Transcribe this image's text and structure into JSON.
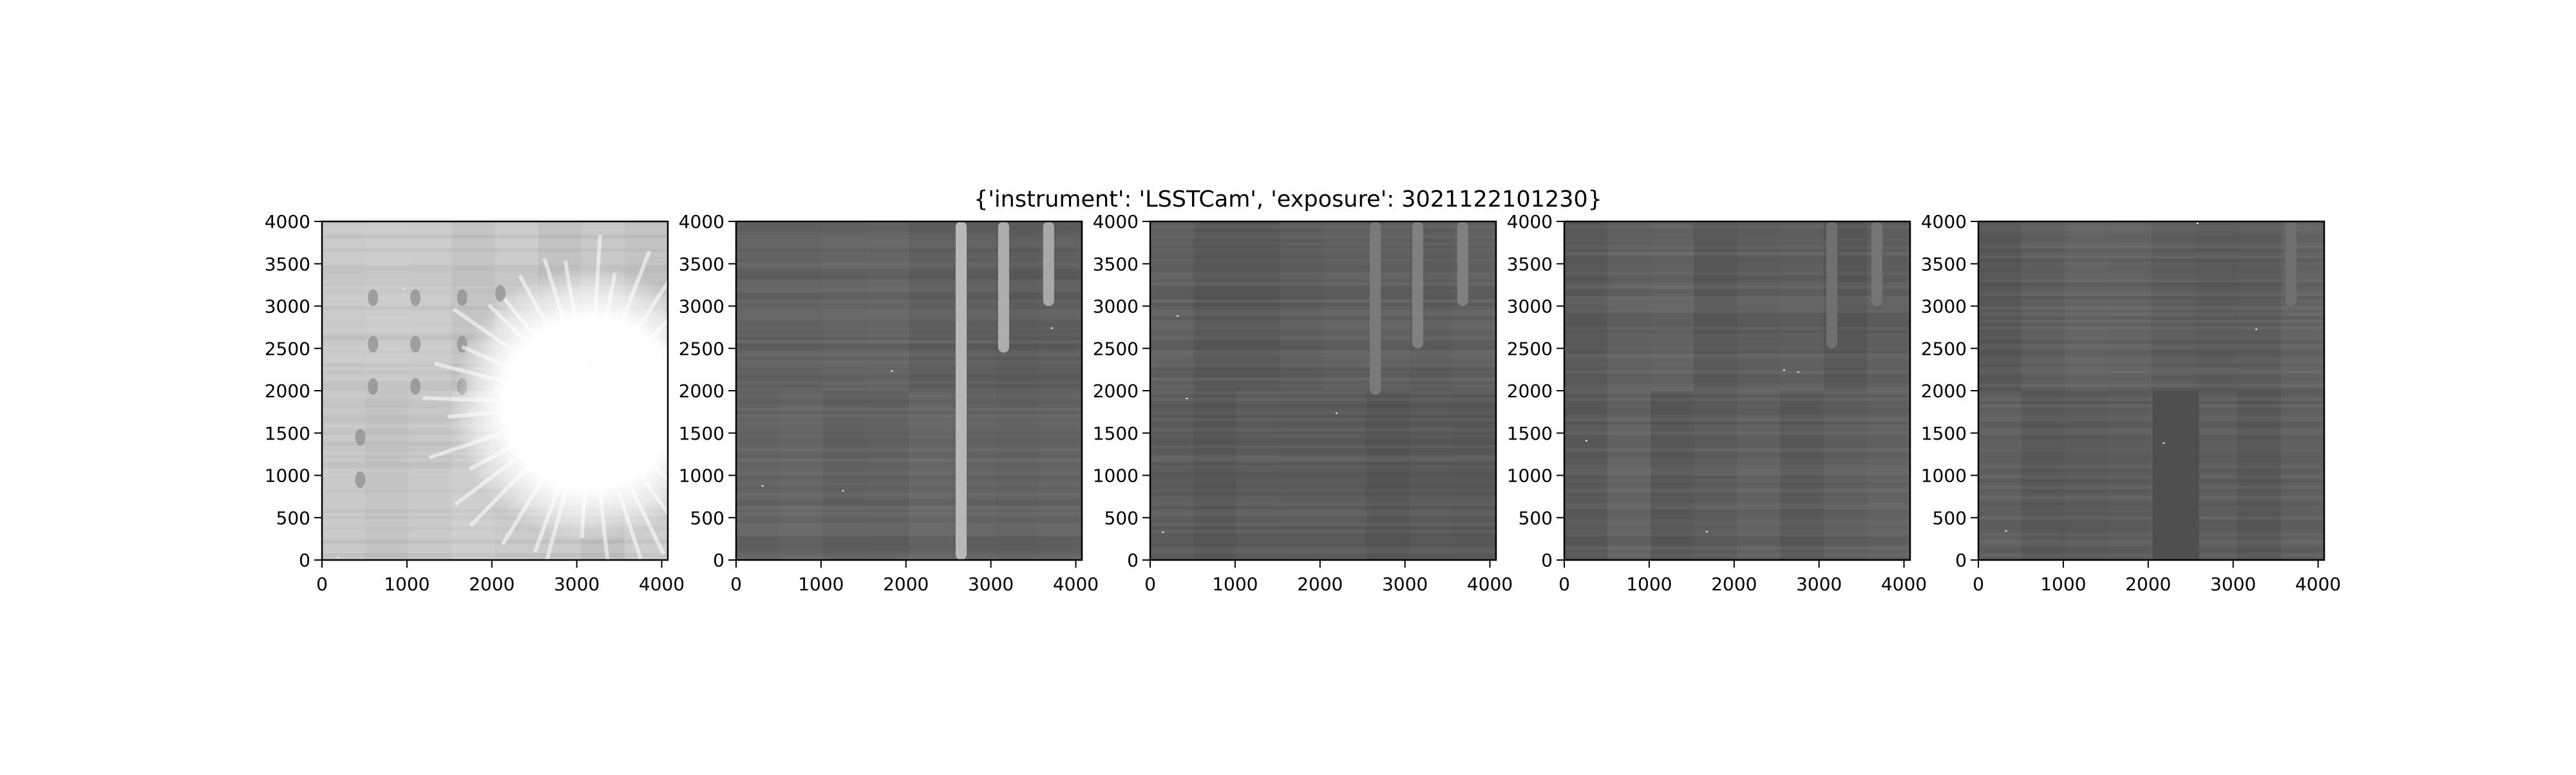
{
  "figure": {
    "suptitle": "{'instrument': 'LSSTCam', 'exposure': 3021122101230}"
  },
  "chart_data": [
    {
      "type": "heatmap",
      "panel": 1,
      "title": "",
      "xlabel": "",
      "ylabel": "",
      "xlim": [
        0,
        4072
      ],
      "ylim": [
        0,
        4000
      ],
      "x_ticks": [
        0,
        1000,
        2000,
        3000,
        4000
      ],
      "y_ticks": [
        0,
        500,
        1000,
        1500,
        2000,
        2500,
        3000,
        3500,
        4000
      ],
      "colormap": "gray",
      "description_values": {
        "amp_columns": 8,
        "amp_rows": 2,
        "base_gray": 0.78,
        "saturated_region_center": [
          3150,
          1850
        ],
        "saturated_region_radius": 1050,
        "dark_spots": [
          [
            600,
            3100
          ],
          [
            1100,
            3100
          ],
          [
            1650,
            3100
          ],
          [
            2100,
            3150
          ],
          [
            600,
            2550
          ],
          [
            1100,
            2550
          ],
          [
            1650,
            2550
          ],
          [
            600,
            2050
          ],
          [
            1100,
            2050
          ],
          [
            1650,
            2050
          ],
          [
            450,
            1450
          ],
          [
            450,
            950
          ]
        ]
      }
    },
    {
      "type": "heatmap",
      "panel": 2,
      "title": "",
      "xlabel": "",
      "ylabel": "",
      "xlim": [
        0,
        4072
      ],
      "ylim": [
        0,
        4000
      ],
      "x_ticks": [
        0,
        1000,
        2000,
        3000,
        4000
      ],
      "y_ticks": [
        0,
        500,
        1000,
        1500,
        2000,
        2500,
        3000,
        3500,
        4000
      ],
      "colormap": "gray",
      "description_values": {
        "amp_columns": 8,
        "amp_rows": 2,
        "base_gray": 0.38,
        "bright_trails": [
          [
            2650,
            0,
            4000,
            0.72
          ],
          [
            3150,
            2450,
            4000,
            0.68
          ],
          [
            3680,
            3000,
            4000,
            0.66
          ]
        ]
      }
    },
    {
      "type": "heatmap",
      "panel": 3,
      "title": "",
      "xlabel": "",
      "ylabel": "",
      "xlim": [
        0,
        4072
      ],
      "ylim": [
        0,
        4000
      ],
      "x_ticks": [
        0,
        1000,
        2000,
        3000,
        4000
      ],
      "y_ticks": [
        0,
        500,
        1000,
        1500,
        2000,
        2500,
        3000,
        3500,
        4000
      ],
      "colormap": "gray",
      "description_values": {
        "amp_columns": 8,
        "amp_rows": 2,
        "base_gray": 0.36,
        "bright_trails": [
          [
            2650,
            1950,
            4000,
            0.48
          ],
          [
            3150,
            2500,
            4000,
            0.5
          ],
          [
            3680,
            3000,
            4000,
            0.5
          ]
        ]
      }
    },
    {
      "type": "heatmap",
      "panel": 4,
      "title": "",
      "xlabel": "",
      "ylabel": "",
      "xlim": [
        0,
        4072
      ],
      "ylim": [
        0,
        4000
      ],
      "x_ticks": [
        0,
        1000,
        2000,
        3000,
        4000
      ],
      "y_ticks": [
        0,
        500,
        1000,
        1500,
        2000,
        2500,
        3000,
        3500,
        4000
      ],
      "colormap": "gray",
      "description_values": {
        "amp_columns": 8,
        "amp_rows": 2,
        "base_gray": 0.37,
        "bright_trails": [
          [
            3150,
            2500,
            4000,
            0.44
          ],
          [
            3680,
            3000,
            4000,
            0.46
          ]
        ]
      }
    },
    {
      "type": "heatmap",
      "panel": 5,
      "title": "",
      "xlabel": "",
      "ylabel": "",
      "xlim": [
        0,
        4072
      ],
      "ylim": [
        0,
        4000
      ],
      "x_ticks": [
        0,
        1000,
        2000,
        3000,
        4000
      ],
      "y_ticks": [
        0,
        500,
        1000,
        1500,
        2000,
        2500,
        3000,
        3500,
        4000
      ],
      "colormap": "gray",
      "description_values": {
        "amp_columns": 8,
        "amp_rows": 2,
        "base_gray": 0.37,
        "bright_trails": [
          [
            3680,
            3000,
            4000,
            0.44
          ]
        ],
        "dark_block": [
          2050,
          2600,
          0,
          2000
        ]
      }
    }
  ]
}
